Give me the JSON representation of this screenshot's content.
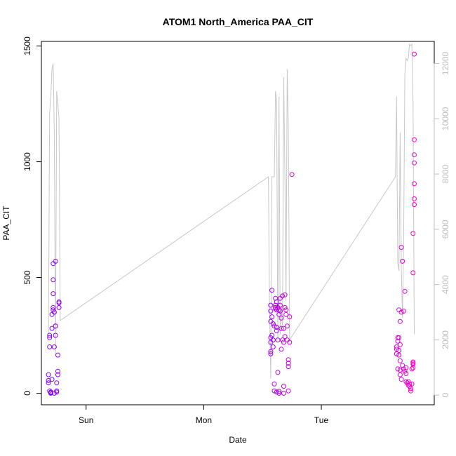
{
  "chart_data": {
    "type": "scatter",
    "title": "ATOM1 North_America PAA_CIT",
    "xlabel": "Date",
    "ylabel": "PAA_CIT",
    "x_ticks": [
      {
        "label": "Sun",
        "value": 0.0
      },
      {
        "label": "Mon",
        "value": 1.0
      },
      {
        "label": "Tue",
        "value": 2.0
      }
    ],
    "xlim": [
      -0.38,
      2.96
    ],
    "ylim": [
      -50,
      1520
    ],
    "y_ticks": [
      0,
      500,
      1000,
      1500
    ],
    "y2lim": [
      -350,
      12800
    ],
    "y2_ticks": [
      0,
      2000,
      4000,
      6000,
      8000,
      10000,
      12000
    ],
    "grid": false,
    "colors": {
      "points_start": "#7b00ff",
      "points_end": "#ff00c8",
      "line": "#c8c8c8",
      "axis": "#000000",
      "axis2": "#bebebe"
    },
    "points": [
      [
        -0.32,
        80
      ],
      [
        -0.32,
        55
      ],
      [
        -0.32,
        45
      ],
      [
        -0.31,
        200
      ],
      [
        -0.31,
        250
      ],
      [
        -0.31,
        240
      ],
      [
        -0.31,
        10
      ],
      [
        -0.3,
        5
      ],
      [
        -0.3,
        0
      ],
      [
        -0.3,
        3
      ],
      [
        -0.29,
        60
      ],
      [
        -0.29,
        280
      ],
      [
        -0.29,
        340
      ],
      [
        -0.28,
        360
      ],
      [
        -0.28,
        370
      ],
      [
        -0.28,
        430
      ],
      [
        -0.28,
        490
      ],
      [
        -0.28,
        560
      ],
      [
        -0.27,
        350
      ],
      [
        -0.27,
        200
      ],
      [
        -0.27,
        0
      ],
      [
        -0.26,
        570
      ],
      [
        -0.26,
        290
      ],
      [
        -0.26,
        290
      ],
      [
        -0.26,
        250
      ],
      [
        -0.25,
        10
      ],
      [
        -0.25,
        5
      ],
      [
        -0.25,
        45
      ],
      [
        -0.24,
        80
      ],
      [
        -0.24,
        95
      ],
      [
        -0.24,
        165
      ],
      [
        -0.23,
        390
      ],
      [
        -0.23,
        395
      ],
      [
        -0.23,
        370
      ],
      [
        1.57,
        380
      ],
      [
        1.57,
        355
      ],
      [
        1.57,
        310
      ],
      [
        1.57,
        240
      ],
      [
        1.57,
        220
      ],
      [
        1.57,
        170
      ],
      [
        1.57,
        180
      ],
      [
        1.58,
        445
      ],
      [
        1.58,
        330
      ],
      [
        1.58,
        250
      ],
      [
        1.59,
        300
      ],
      [
        1.59,
        230
      ],
      [
        1.59,
        200
      ],
      [
        1.6,
        290
      ],
      [
        1.6,
        40
      ],
      [
        1.6,
        10
      ],
      [
        1.61,
        410
      ],
      [
        1.61,
        380
      ],
      [
        1.61,
        365
      ],
      [
        1.61,
        370
      ],
      [
        1.62,
        395
      ],
      [
        1.62,
        360
      ],
      [
        1.62,
        285
      ],
      [
        1.62,
        270
      ],
      [
        1.62,
        5
      ],
      [
        1.63,
        370
      ],
      [
        1.63,
        230
      ],
      [
        1.63,
        90
      ],
      [
        1.64,
        8
      ],
      [
        1.64,
        0
      ],
      [
        1.64,
        360
      ],
      [
        1.64,
        340
      ],
      [
        1.65,
        410
      ],
      [
        1.65,
        380
      ],
      [
        1.65,
        355
      ],
      [
        1.66,
        325
      ],
      [
        1.66,
        280
      ],
      [
        1.66,
        190
      ],
      [
        1.67,
        420
      ],
      [
        1.67,
        230
      ],
      [
        1.68,
        280
      ],
      [
        1.68,
        220
      ],
      [
        1.68,
        30
      ],
      [
        1.68,
        0
      ],
      [
        1.69,
        425
      ],
      [
        1.69,
        370
      ],
      [
        1.69,
        245
      ],
      [
        1.7,
        360
      ],
      [
        1.7,
        340
      ],
      [
        1.71,
        290
      ],
      [
        1.71,
        230
      ],
      [
        1.72,
        145
      ],
      [
        1.72,
        130
      ],
      [
        1.72,
        115
      ],
      [
        1.72,
        10
      ],
      [
        1.73,
        330
      ],
      [
        1.73,
        220
      ],
      [
        1.75,
        945
      ],
      [
        2.64,
        190
      ],
      [
        2.64,
        200
      ],
      [
        2.64,
        170
      ],
      [
        2.65,
        240
      ],
      [
        2.65,
        225
      ],
      [
        2.65,
        105
      ],
      [
        2.66,
        360
      ],
      [
        2.66,
        240
      ],
      [
        2.66,
        185
      ],
      [
        2.66,
        165
      ],
      [
        2.67,
        310
      ],
      [
        2.67,
        210
      ],
      [
        2.67,
        140
      ],
      [
        2.67,
        100
      ],
      [
        2.67,
        80
      ],
      [
        2.68,
        630
      ],
      [
        2.68,
        350
      ],
      [
        2.68,
        60
      ],
      [
        2.69,
        570
      ],
      [
        2.69,
        120
      ],
      [
        2.7,
        355
      ],
      [
        2.7,
        105
      ],
      [
        2.71,
        440
      ],
      [
        2.71,
        95
      ],
      [
        2.72,
        110
      ],
      [
        2.72,
        85
      ],
      [
        2.72,
        50
      ],
      [
        2.73,
        45
      ],
      [
        2.74,
        50
      ],
      [
        2.74,
        35
      ],
      [
        2.75,
        40
      ],
      [
        2.75,
        30
      ],
      [
        2.76,
        20
      ],
      [
        2.76,
        10
      ],
      [
        2.77,
        40
      ],
      [
        2.77,
        105
      ],
      [
        2.78,
        110
      ],
      [
        2.78,
        125
      ],
      [
        2.78,
        130
      ],
      [
        2.78,
        135
      ],
      [
        2.78,
        520
      ],
      [
        2.78,
        690
      ],
      [
        2.79,
        815
      ],
      [
        2.79,
        840
      ],
      [
        2.79,
        905
      ],
      [
        2.79,
        995
      ],
      [
        2.79,
        1030
      ],
      [
        2.79,
        1095
      ],
      [
        2.79,
        1465
      ]
    ],
    "line_y2_label": "right axis (unnamed)",
    "line": [
      [
        -0.32,
        2200
      ],
      [
        -0.31,
        10200
      ],
      [
        -0.3,
        10800
      ],
      [
        -0.29,
        11800
      ],
      [
        -0.28,
        12000
      ],
      [
        -0.27,
        9500
      ],
      [
        -0.26,
        1500
      ],
      [
        -0.25,
        11000
      ],
      [
        -0.24,
        10500
      ],
      [
        -0.23,
        10000
      ],
      [
        -0.22,
        2700
      ],
      [
        1.55,
        7900
      ],
      [
        1.56,
        3000
      ],
      [
        1.57,
        600
      ],
      [
        1.58,
        7900
      ],
      [
        1.59,
        7900
      ],
      [
        1.6,
        7900
      ],
      [
        1.61,
        11000
      ],
      [
        1.62,
        10700
      ],
      [
        1.63,
        2000
      ],
      [
        1.64,
        10800
      ],
      [
        1.65,
        2200
      ],
      [
        1.66,
        3200
      ],
      [
        1.67,
        2500
      ],
      [
        1.68,
        11500
      ],
      [
        1.69,
        8000
      ],
      [
        1.7,
        3400
      ],
      [
        1.71,
        11800
      ],
      [
        1.72,
        9500
      ],
      [
        1.73,
        2000
      ],
      [
        2.63,
        7900
      ],
      [
        2.64,
        10800
      ],
      [
        2.65,
        4800
      ],
      [
        2.66,
        4500
      ],
      [
        2.67,
        9500
      ],
      [
        2.68,
        4500
      ],
      [
        2.69,
        2800
      ],
      [
        2.7,
        5700
      ],
      [
        2.71,
        11600
      ],
      [
        2.72,
        12200
      ],
      [
        2.73,
        12100
      ],
      [
        2.74,
        12200
      ],
      [
        2.75,
        12700
      ],
      [
        2.76,
        12650
      ],
      [
        2.77,
        12700
      ],
      [
        2.78,
        10500
      ],
      [
        2.79,
        2200
      ]
    ]
  }
}
